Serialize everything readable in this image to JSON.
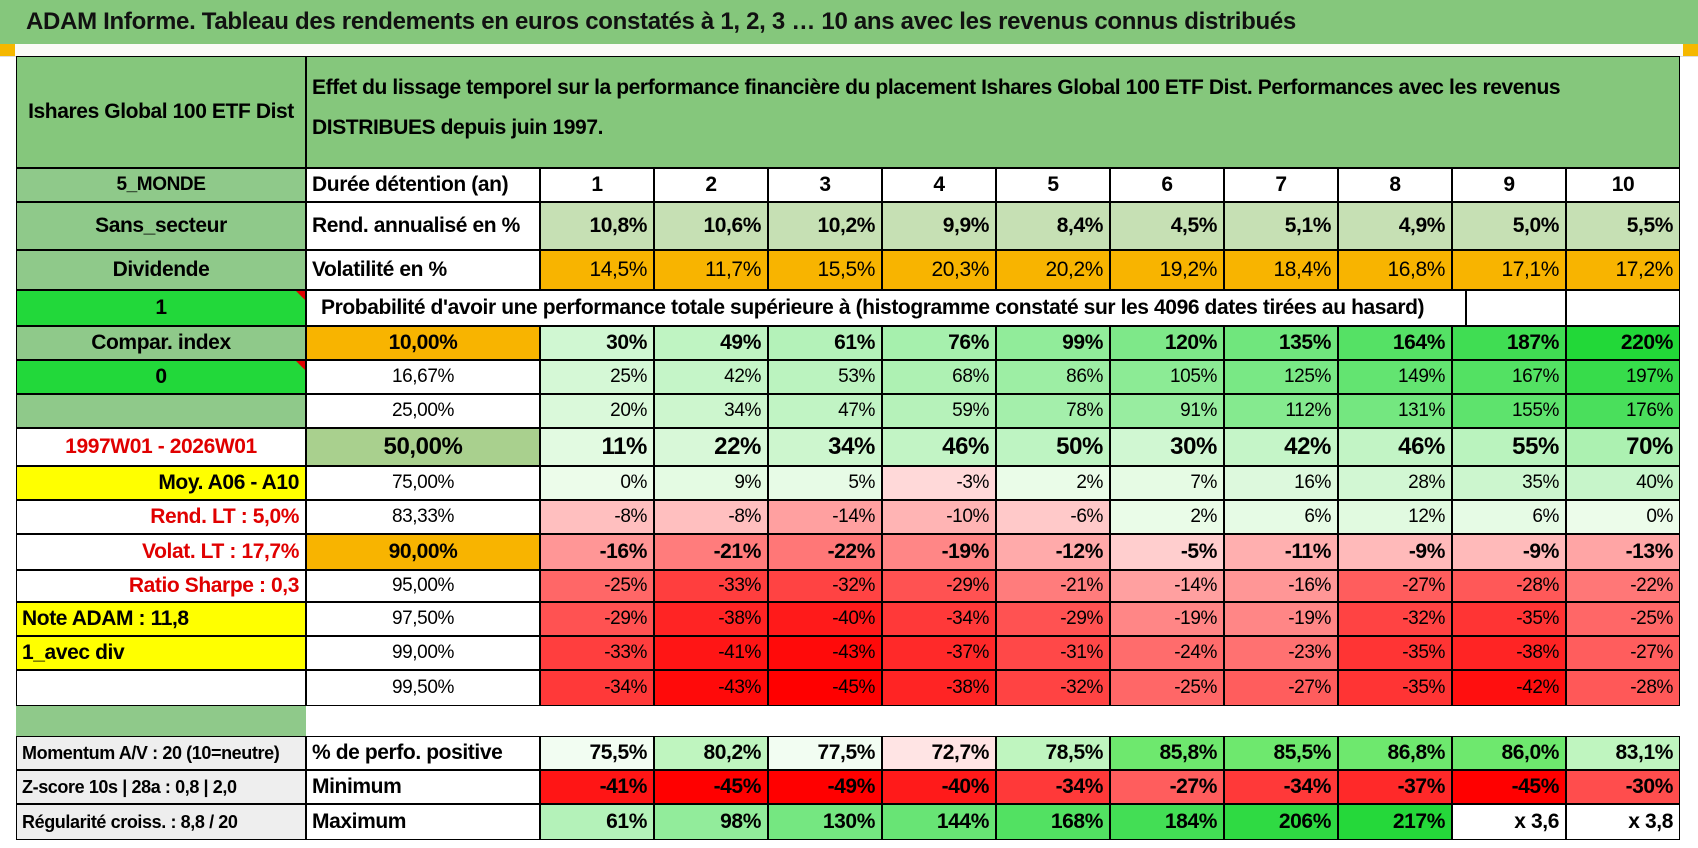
{
  "title": "ADAM Informe. Tableau des rendements en euros constatés à 1, 2, 3 … 10 ans avec les revenus connus distribués",
  "fund_name": "Ishares Global 100 ETF Dist",
  "description": "Effet du lissage temporel sur la performance financière du placement Ishares Global 100 ETF Dist. Performances avec les revenus DISTRIBUES depuis juin 1997.",
  "left": {
    "region": "5_MONDE",
    "sector": "Sans_secteur",
    "type": "Dividende",
    "flag1": "1",
    "compar": "Compar. index",
    "flag2": "0",
    "period": "1997W01 - 2026W01",
    "moy": "Moy. A06 - A10",
    "rend_lt": "Rend. LT :    5,0%",
    "volat_lt": "Volat. LT :    17,7%",
    "sharpe": "Ratio Sharpe :     0,3",
    "note": "Note ADAM : 11,8",
    "avec_div": "1_avec div",
    "momentum": "Momentum A/V : 20 (10=neutre)",
    "zscore": "Z-score 10s | 28a : 0,8 | 2,0",
    "regularite": "Régularité croiss. : 8,8 / 20"
  },
  "row_labels": {
    "duration": "Durée détention (an)",
    "rend": "Rend. annualisé en %",
    "vol": "Volatilité en %",
    "prob": "Probabilité d'avoir une performance totale supérieure à (histogramme constaté sur les 4096 dates tirées au hasard)",
    "pos": "% de perfo. positive",
    "min": "Minimum",
    "max": "Maximum"
  },
  "durations": [
    "1",
    "2",
    "3",
    "4",
    "5",
    "6",
    "7",
    "8",
    "9",
    "10"
  ],
  "rend": [
    "10,8%",
    "10,6%",
    "10,2%",
    "9,9%",
    "8,4%",
    "4,5%",
    "5,1%",
    "4,9%",
    "5,0%",
    "5,5%"
  ],
  "vol": [
    "14,5%",
    "11,7%",
    "15,5%",
    "20,3%",
    "20,2%",
    "19,2%",
    "18,4%",
    "16,8%",
    "17,1%",
    "17,2%"
  ],
  "quantiles": [
    {
      "label": "10,00%",
      "values": [
        "30%",
        "49%",
        "61%",
        "76%",
        "99%",
        "120%",
        "135%",
        "164%",
        "187%",
        "220%"
      ]
    },
    {
      "label": "16,67%",
      "values": [
        "25%",
        "42%",
        "53%",
        "68%",
        "86%",
        "105%",
        "125%",
        "149%",
        "167%",
        "197%"
      ]
    },
    {
      "label": "25,00%",
      "values": [
        "20%",
        "34%",
        "47%",
        "59%",
        "78%",
        "91%",
        "112%",
        "131%",
        "155%",
        "176%"
      ]
    },
    {
      "label": "50,00%",
      "values": [
        "11%",
        "22%",
        "34%",
        "46%",
        "50%",
        "30%",
        "42%",
        "46%",
        "55%",
        "70%"
      ]
    },
    {
      "label": "75,00%",
      "values": [
        "0%",
        "9%",
        "5%",
        "-3%",
        "2%",
        "7%",
        "16%",
        "28%",
        "35%",
        "40%"
      ]
    },
    {
      "label": "83,33%",
      "values": [
        "-8%",
        "-8%",
        "-14%",
        "-10%",
        "-6%",
        "2%",
        "6%",
        "12%",
        "6%",
        "0%"
      ]
    },
    {
      "label": "90,00%",
      "values": [
        "-16%",
        "-21%",
        "-22%",
        "-19%",
        "-12%",
        "-5%",
        "-11%",
        "-9%",
        "-9%",
        "-13%"
      ]
    },
    {
      "label": "95,00%",
      "values": [
        "-25%",
        "-33%",
        "-32%",
        "-29%",
        "-21%",
        "-14%",
        "-16%",
        "-27%",
        "-28%",
        "-22%"
      ]
    },
    {
      "label": "97,50%",
      "values": [
        "-29%",
        "-38%",
        "-40%",
        "-34%",
        "-29%",
        "-19%",
        "-19%",
        "-32%",
        "-35%",
        "-25%"
      ]
    },
    {
      "label": "99,00%",
      "values": [
        "-33%",
        "-41%",
        "-43%",
        "-37%",
        "-31%",
        "-24%",
        "-23%",
        "-35%",
        "-38%",
        "-27%"
      ]
    },
    {
      "label": "99,50%",
      "values": [
        "-34%",
        "-43%",
        "-45%",
        "-38%",
        "-32%",
        "-25%",
        "-27%",
        "-35%",
        "-42%",
        "-28%"
      ]
    }
  ],
  "pos": [
    "75,5%",
    "80,2%",
    "77,5%",
    "72,7%",
    "78,5%",
    "85,8%",
    "85,5%",
    "86,8%",
    "86,0%",
    "83,1%"
  ],
  "min": [
    "-41%",
    "-45%",
    "-49%",
    "-40%",
    "-34%",
    "-27%",
    "-34%",
    "-37%",
    "-45%",
    "-30%"
  ],
  "max": [
    "61%",
    "98%",
    "130%",
    "144%",
    "168%",
    "184%",
    "206%",
    "217%",
    "x 3,6",
    "x 3,8"
  ],
  "colors": {
    "header_green": "#85c77c",
    "label_green": "#8fc98a",
    "bright_green": "#22d83a",
    "orange": "#f8b400",
    "yellow": "#ffff00",
    "gray": "#eeeeee"
  }
}
